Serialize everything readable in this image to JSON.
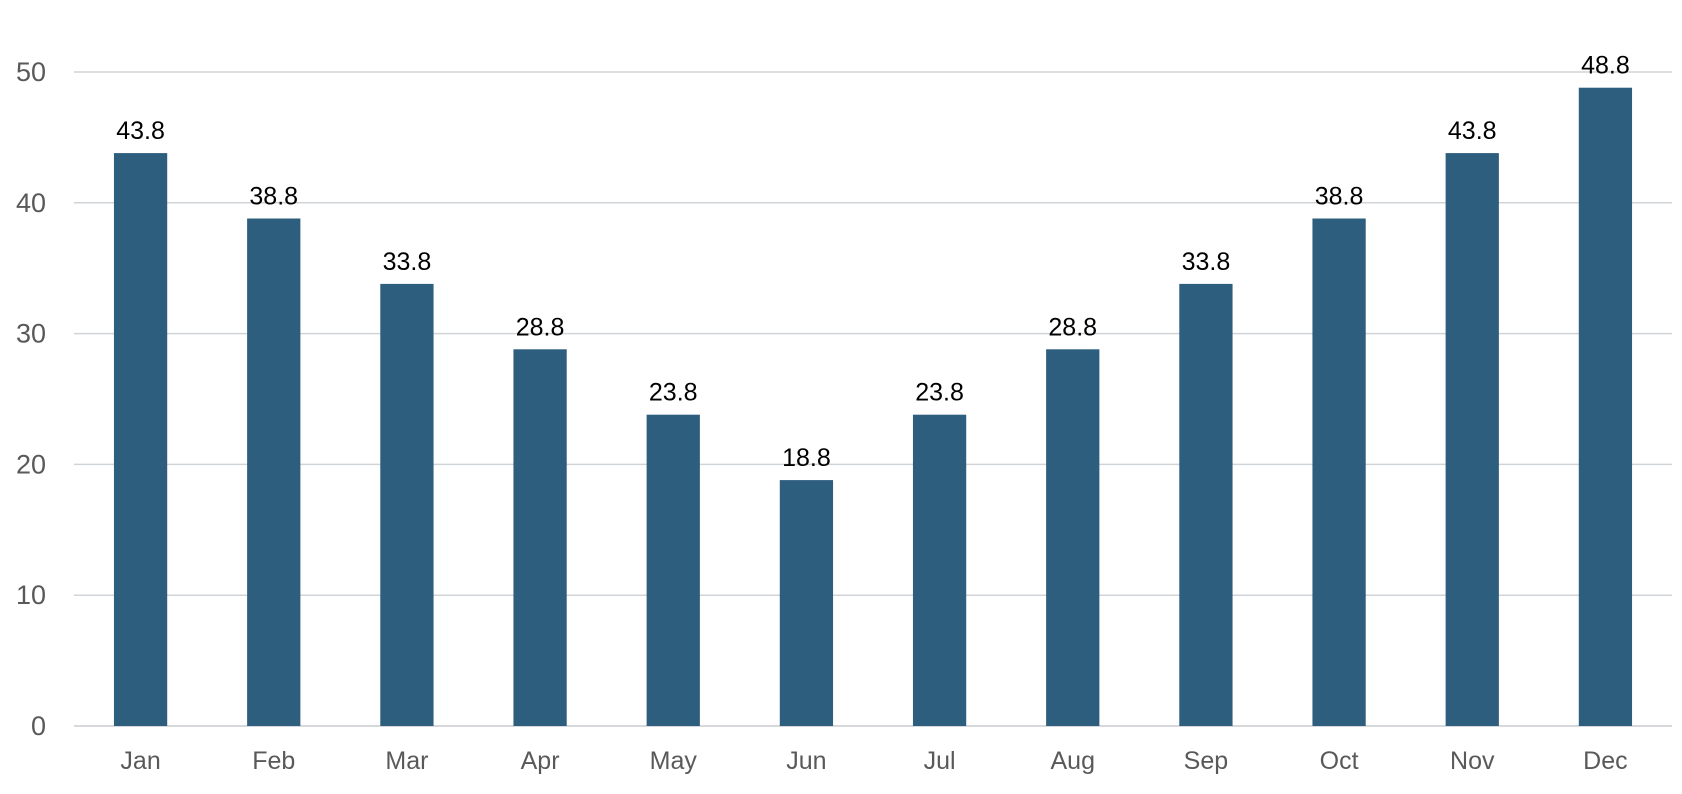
{
  "chart_data": {
    "type": "bar",
    "title": "",
    "xlabel": "",
    "ylabel": "",
    "categories": [
      "Jan",
      "Feb",
      "Mar",
      "Apr",
      "May",
      "Jun",
      "Jul",
      "Aug",
      "Sep",
      "Oct",
      "Nov",
      "Dec"
    ],
    "values": [
      43.8,
      38.8,
      33.8,
      28.8,
      23.8,
      18.8,
      23.8,
      28.8,
      33.8,
      38.8,
      43.8,
      48.8
    ],
    "data_labels": [
      "43.8",
      "38.8",
      "33.8",
      "28.8",
      "23.8",
      "18.8",
      "23.8",
      "28.8",
      "33.8",
      "38.8",
      "43.8",
      "48.8"
    ],
    "ylim": [
      0,
      50
    ],
    "yticks": [
      "0",
      "10",
      "20",
      "30",
      "40",
      "50"
    ],
    "grid": true,
    "legend": "none",
    "bar_color": "#2e5e7e"
  }
}
